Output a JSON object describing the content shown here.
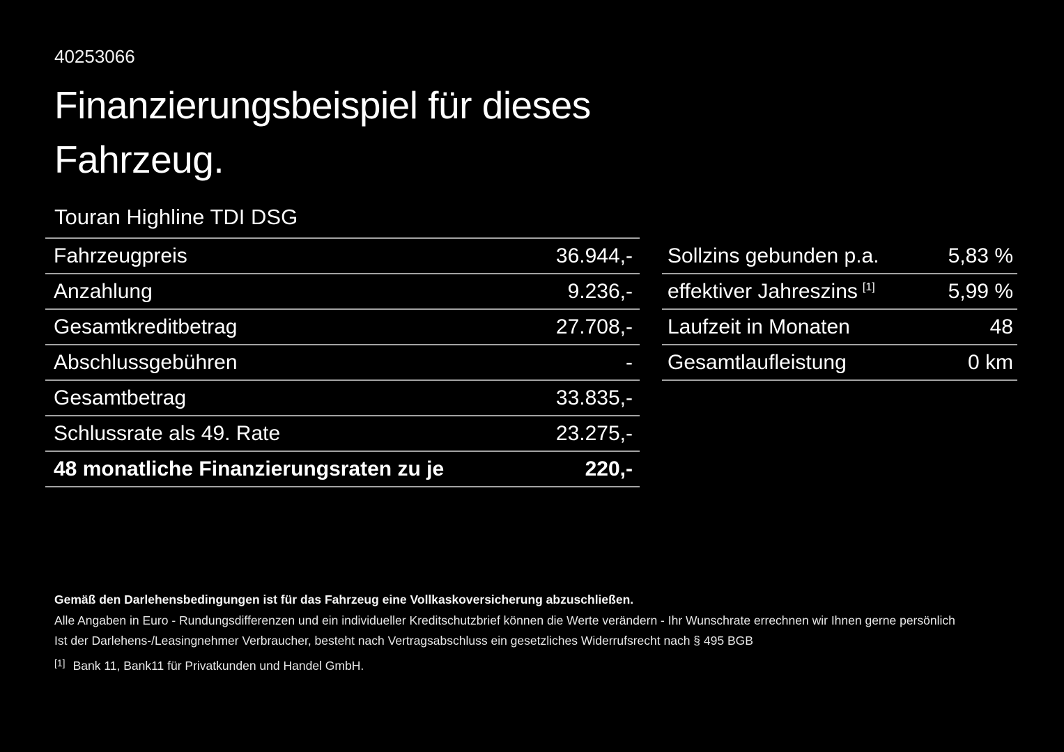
{
  "page": {
    "id_number": "40253066",
    "title": "Finanzierungsbeispiel für dieses Fahrzeug.",
    "vehicle_name": "Touran Highline TDI DSG"
  },
  "finance_table": {
    "rows": [
      {
        "label": "Fahrzeugpreis",
        "value": "36.944,-"
      },
      {
        "label": "Anzahlung",
        "value": "9.236,-"
      },
      {
        "label": "Gesamtkreditbetrag",
        "value": "27.708,-"
      },
      {
        "label": "Abschlussgebühren",
        "value": "-"
      },
      {
        "label": "Gesamtbetrag",
        "value": "33.835,-"
      },
      {
        "label": "Schlussrate als 49. Rate",
        "value": "23.275,-"
      },
      {
        "label": "48 monatliche Finanzierungsraten zu je",
        "value": "220,-"
      }
    ]
  },
  "conditions_table": {
    "rows": [
      {
        "label": "Sollzins gebunden p.a.",
        "value": "5,83 %"
      },
      {
        "label": "effektiver Jahreszins",
        "footnote_marker": "[1]",
        "value": "5,99 %"
      },
      {
        "label": "Laufzeit in Monaten",
        "value": "48"
      },
      {
        "label": "Gesamtlaufleistung",
        "value": "0 km"
      }
    ]
  },
  "footer": {
    "line1": "Gemäß den Darlehensbedingungen ist für das Fahrzeug eine Vollkaskoversicherung abzuschließen.",
    "line2": "Alle Angaben in Euro - Rundungsdifferenzen und ein individueller Kreditschutzbrief können die Werte verändern - Ihr Wunschrate errechnen wir Ihnen gerne persönlich",
    "line3": "Ist der Darlehens-/Leasingnehmer Verbraucher, besteht nach Vertragsabschluss ein gesetzliches Widerrufsrecht nach § 495 BGB",
    "footnote_marker": "[1]",
    "footnote_text": "Bank 11, Bank11 für Privatkunden und Handel GmbH."
  },
  "colors": {
    "background": "#000000",
    "text": "#ffffff",
    "divider": "#a3a3a3"
  }
}
